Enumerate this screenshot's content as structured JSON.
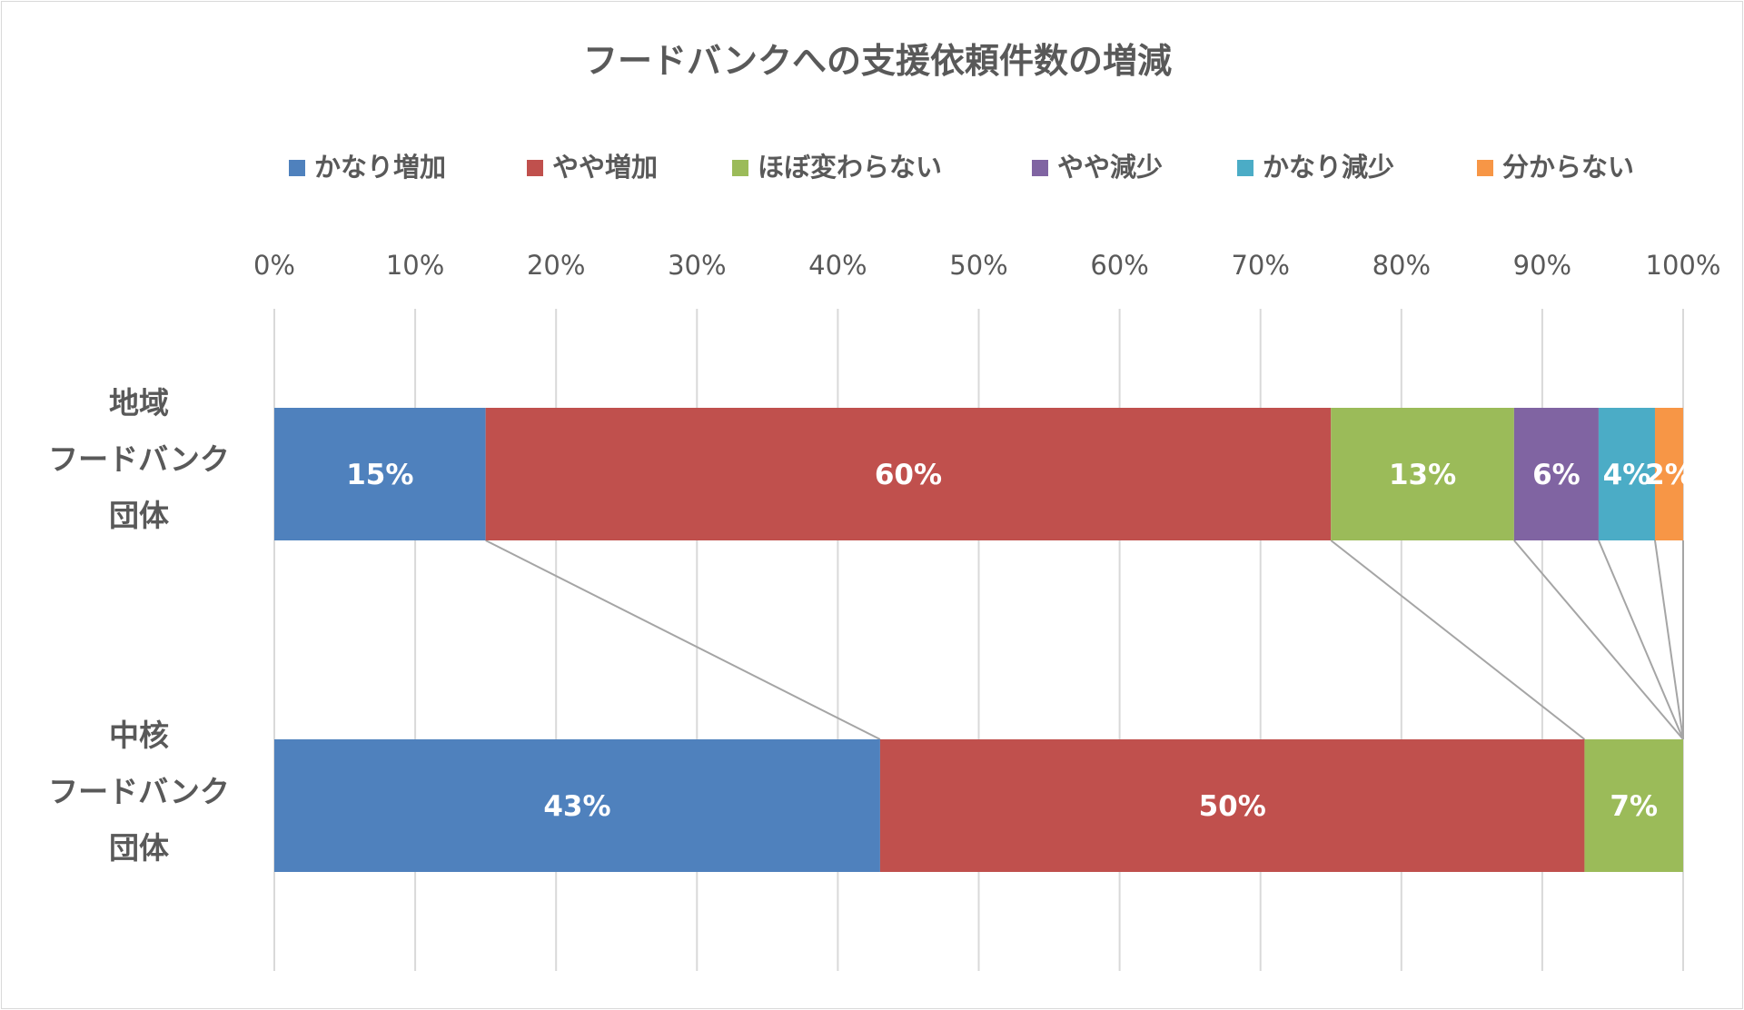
{
  "chart_data": {
    "type": "bar",
    "orientation": "horizontal",
    "stacked": "percent",
    "title": "フードバンクへの支援依頼件数の増減",
    "categories": [
      [
        "地域",
        "フードバンク",
        "団体"
      ],
      [
        "中核",
        "フードバンク",
        "団体"
      ]
    ],
    "series": [
      {
        "name": "かなり増加",
        "color": "#4f81bd",
        "values": [
          15,
          43
        ]
      },
      {
        "name": "やや増加",
        "color": "#c0504d",
        "values": [
          60,
          50
        ]
      },
      {
        "name": "ほぼ変わらない",
        "color": "#9bbb59",
        "values": [
          13,
          7
        ]
      },
      {
        "name": "やや減少",
        "color": "#8064a2",
        "values": [
          6,
          0
        ]
      },
      {
        "name": "かなり減少",
        "color": "#4bacc6",
        "values": [
          4,
          0
        ]
      },
      {
        "name": "分からない",
        "color": "#f79646",
        "values": [
          2,
          0
        ]
      }
    ],
    "xlim": [
      0,
      100
    ],
    "xticks": [
      "0%",
      "10%",
      "20%",
      "30%",
      "40%",
      "50%",
      "60%",
      "70%",
      "80%",
      "90%",
      "100%"
    ],
    "grid": true,
    "legend": "top",
    "series_lines": true,
    "data_labels": true
  }
}
